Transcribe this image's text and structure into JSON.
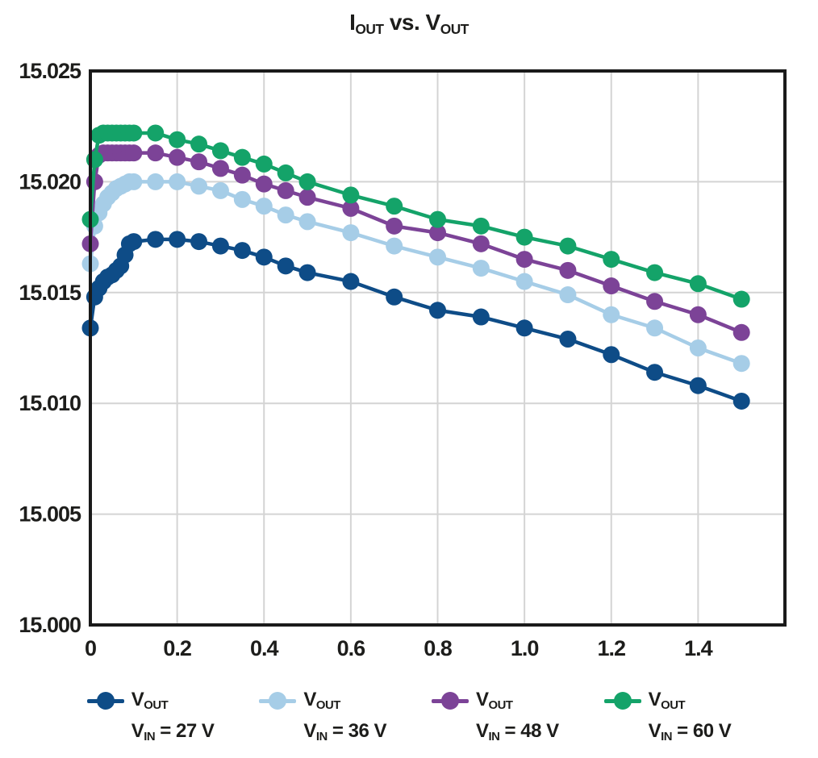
{
  "title": {
    "p1": "I",
    "s1": "OUT",
    "mid": " vs. ",
    "p2": "V",
    "s2": "OUT"
  },
  "colors": {
    "vin27": "#0e4c87",
    "vin36": "#a6cde7",
    "vin48": "#7c4397",
    "vin60": "#14a369",
    "gridline": "#d4d4d4",
    "axis_border": "#1a1a1a",
    "background": "#ffffff",
    "text": "#1d1d1b"
  },
  "legend": {
    "items": [
      {
        "line1_p": "V",
        "line1_sub": "OUT",
        "line2_p": "V",
        "line2_sub": "IN",
        "line2_rest": " = 27 V",
        "color": "#0e4c87"
      },
      {
        "line1_p": "V",
        "line1_sub": "OUT",
        "line2_p": "V",
        "line2_sub": "IN",
        "line2_rest": " = 36 V",
        "color": "#a6cde7"
      },
      {
        "line1_p": "V",
        "line1_sub": "OUT",
        "line2_p": "V",
        "line2_sub": "IN",
        "line2_rest": " = 48 V",
        "color": "#7c4397"
      },
      {
        "line1_p": "V",
        "line1_sub": "OUT",
        "line2_p": "V",
        "line2_sub": "IN",
        "line2_rest": " = 60 V",
        "color": "#14a369"
      }
    ]
  },
  "chart_data": {
    "type": "line",
    "title": "IOUT vs. VOUT",
    "xlabel": "",
    "ylabel": "",
    "xlim": [
      0,
      1.6
    ],
    "ylim": [
      15.0,
      15.025
    ],
    "grid": true,
    "legend_position": "bottom",
    "x_ticks": [
      {
        "value": 0.0,
        "label": "0"
      },
      {
        "value": 0.2,
        "label": "0.2"
      },
      {
        "value": 0.4,
        "label": "0.4"
      },
      {
        "value": 0.6,
        "label": "0.6"
      },
      {
        "value": 0.8,
        "label": "0.8"
      },
      {
        "value": 1.0,
        "label": "1.0"
      },
      {
        "value": 1.2,
        "label": "1.2"
      },
      {
        "value": 1.4,
        "label": "1.4"
      }
    ],
    "y_ticks": [
      {
        "value": 15.0,
        "label": "15.000"
      },
      {
        "value": 15.005,
        "label": "15.005"
      },
      {
        "value": 15.01,
        "label": "15.010"
      },
      {
        "value": 15.015,
        "label": "15.015"
      },
      {
        "value": 15.02,
        "label": "15.020"
      },
      {
        "value": 15.025,
        "label": "15.025"
      }
    ],
    "x": [
      0,
      0.01,
      0.02,
      0.03,
      0.04,
      0.05,
      0.06,
      0.07,
      0.08,
      0.09,
      0.1,
      0.15,
      0.2,
      0.25,
      0.3,
      0.35,
      0.4,
      0.45,
      0.5,
      0.6,
      0.7,
      0.8,
      0.9,
      1.0,
      1.1,
      1.2,
      1.3,
      1.4,
      1.5
    ],
    "series": [
      {
        "name": "VOUT, VIN = 27 V",
        "color": "#0e4c87",
        "values": [
          15.0134,
          15.0148,
          15.0152,
          15.0155,
          15.0157,
          15.0158,
          15.016,
          15.0162,
          15.0167,
          15.0172,
          15.0173,
          15.0174,
          15.0174,
          15.0173,
          15.0171,
          15.0169,
          15.0166,
          15.0162,
          15.0159,
          15.0155,
          15.0148,
          15.0142,
          15.0139,
          15.0134,
          15.0129,
          15.0122,
          15.0114,
          15.0108,
          15.0101
        ]
      },
      {
        "name": "VOUT, VIN = 36 V",
        "color": "#a6cde7",
        "values": [
          15.0163,
          15.018,
          15.0186,
          15.019,
          15.0193,
          15.0195,
          15.0197,
          15.0198,
          15.0199,
          15.02,
          15.02,
          15.02,
          15.02,
          15.0198,
          15.0196,
          15.0192,
          15.0189,
          15.0185,
          15.0182,
          15.0177,
          15.0171,
          15.0166,
          15.0161,
          15.0155,
          15.0149,
          15.014,
          15.0134,
          15.0125,
          15.0118
        ]
      },
      {
        "name": "VOUT, VIN = 48 V",
        "color": "#7c4397",
        "values": [
          15.0172,
          15.02,
          15.0212,
          15.0213,
          15.0213,
          15.0213,
          15.0213,
          15.0213,
          15.0213,
          15.0213,
          15.0213,
          15.0213,
          15.0211,
          15.0209,
          15.0206,
          15.0203,
          15.0199,
          15.0196,
          15.0193,
          15.0188,
          15.018,
          15.0177,
          15.0172,
          15.0165,
          15.016,
          15.0153,
          15.0146,
          15.014,
          15.0132
        ]
      },
      {
        "name": "VOUT, VIN = 60 V",
        "color": "#14a369",
        "values": [
          15.0183,
          15.021,
          15.0221,
          15.0222,
          15.0222,
          15.0222,
          15.0222,
          15.0222,
          15.0222,
          15.0222,
          15.0222,
          15.0222,
          15.0219,
          15.0217,
          15.0214,
          15.0211,
          15.0208,
          15.0204,
          15.02,
          15.0194,
          15.0189,
          15.0183,
          15.018,
          15.0175,
          15.0171,
          15.0165,
          15.0159,
          15.0154,
          15.0147
        ]
      }
    ]
  }
}
